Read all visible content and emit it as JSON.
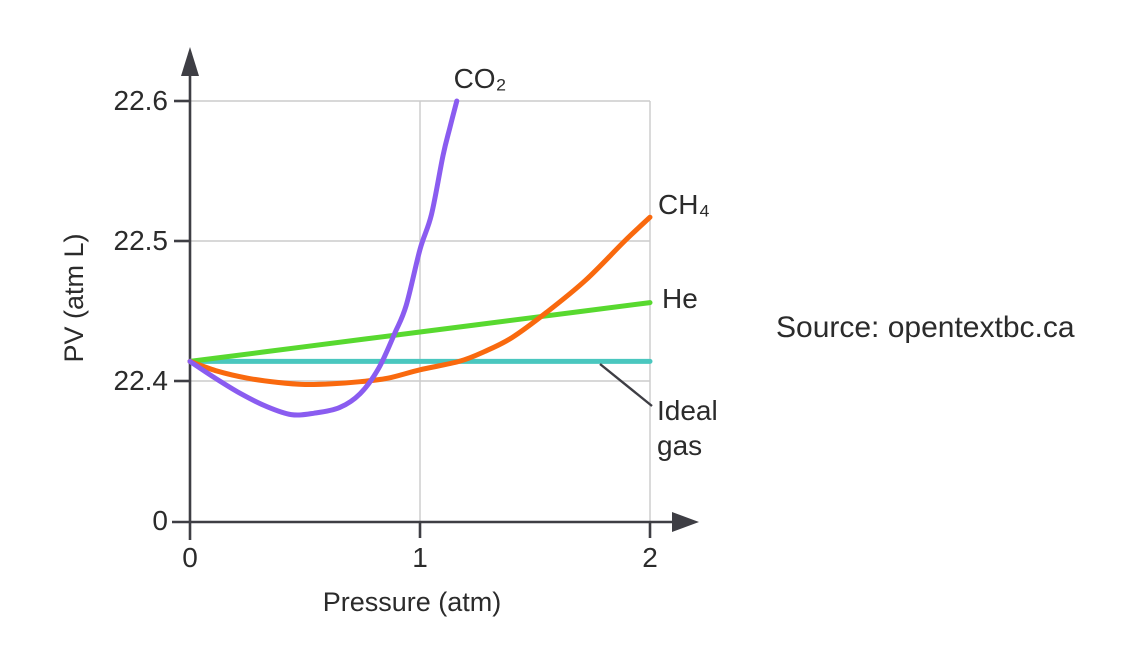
{
  "source": {
    "text": "Source: opentextbc.ca"
  },
  "chart_data": {
    "type": "line",
    "title": "",
    "xlabel": "Pressure (atm)",
    "ylabel": "PV (atm L)",
    "xlim": [
      0,
      2
    ],
    "x_ticks": [
      0,
      1,
      2
    ],
    "x_tick_labels": [
      "0",
      "1",
      "2"
    ],
    "y_ticks": [
      22.6,
      22.5,
      22.4,
      0
    ],
    "y_tick_labels": [
      "22.6",
      "22.5",
      "22.4",
      "0"
    ],
    "y_axis_break": true,
    "grid": true,
    "legend_position": "curve-end-labels",
    "ideal_gas_pv": 22.414,
    "series": [
      {
        "name": "CO2",
        "label": "CO₂",
        "color": "#8a5cf0",
        "points": [
          [
            0,
            22.414
          ],
          [
            0.11,
            22.402
          ],
          [
            0.22,
            22.391
          ],
          [
            0.33,
            22.382
          ],
          [
            0.44,
            22.376
          ],
          [
            0.54,
            22.377
          ],
          [
            0.65,
            22.381
          ],
          [
            0.74,
            22.391
          ],
          [
            0.82,
            22.409
          ],
          [
            0.89,
            22.434
          ],
          [
            0.94,
            22.454
          ],
          [
            1.0,
            22.494
          ],
          [
            1.05,
            22.519
          ],
          [
            1.1,
            22.561
          ],
          [
            1.13,
            22.581
          ],
          [
            1.16,
            22.6
          ]
        ]
      },
      {
        "name": "CH4",
        "label": "CH₄",
        "color": "#f9690e",
        "points": [
          [
            0,
            22.414
          ],
          [
            0.12,
            22.407
          ],
          [
            0.25,
            22.402
          ],
          [
            0.38,
            22.399
          ],
          [
            0.5,
            22.3975
          ],
          [
            0.62,
            22.398
          ],
          [
            0.74,
            22.3995
          ],
          [
            0.86,
            22.402
          ],
          [
            1.0,
            22.408
          ],
          [
            1.17,
            22.414
          ],
          [
            1.28,
            22.421
          ],
          [
            1.4,
            22.431
          ],
          [
            1.55,
            22.449
          ],
          [
            1.72,
            22.472
          ],
          [
            1.89,
            22.5
          ],
          [
            2.0,
            22.517
          ]
        ]
      },
      {
        "name": "He",
        "label": "He",
        "color": "#58d92f",
        "points": [
          [
            0,
            22.414
          ],
          [
            0.5,
            22.4245
          ],
          [
            1.0,
            22.435
          ],
          [
            1.5,
            22.4455
          ],
          [
            2.0,
            22.456
          ]
        ]
      },
      {
        "name": "Ideal gas",
        "label": "Ideal\ngas",
        "color": "#4ac7bf",
        "points": [
          [
            0,
            22.414
          ],
          [
            2.0,
            22.414
          ]
        ]
      }
    ]
  },
  "colors": {
    "axis": "#3e3e44",
    "grid": "#cbcbcb",
    "text": "#2b2b2b",
    "background": "#ffffff"
  }
}
